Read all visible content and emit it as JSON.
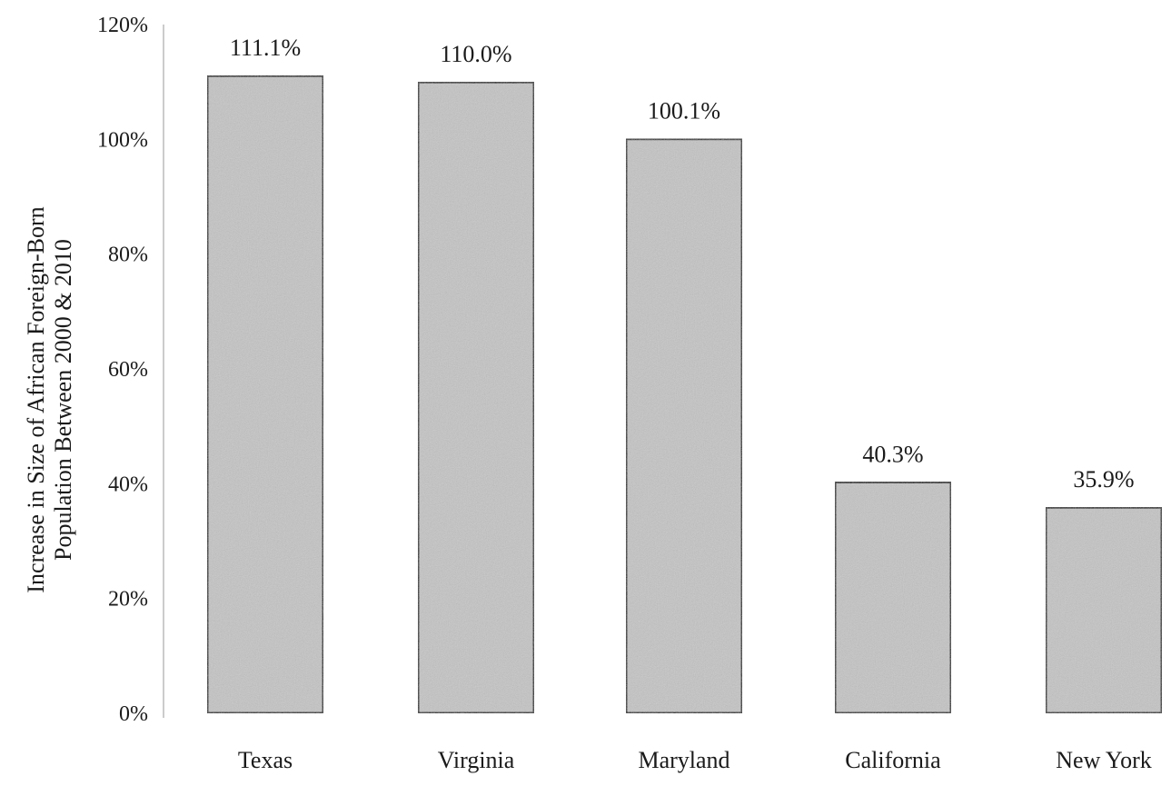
{
  "chart_data": {
    "type": "bar",
    "title": "",
    "xlabel": "",
    "ylabel_lines": [
      "Increase in Size of African Foreign-Born",
      "Population Between 2000 & 2010"
    ],
    "categories": [
      "Texas",
      "Virginia",
      "Maryland",
      "California",
      "New York"
    ],
    "values": [
      111.1,
      110.0,
      100.1,
      40.3,
      35.9
    ],
    "data_labels": [
      "111.1%",
      "110.0%",
      "100.1%",
      "40.3%",
      "35.9%"
    ],
    "ylim": [
      0,
      120
    ],
    "yticks": [
      0,
      20,
      40,
      60,
      80,
      100,
      120
    ],
    "ytick_labels": [
      "0%",
      "20%",
      "40%",
      "60%",
      "80%",
      "100%",
      "120%"
    ],
    "grid": false,
    "legend": "none",
    "colors": {
      "bar_fill": "#c4c4c4",
      "bar_stroke": "#1a1a1a",
      "axis": "#9a9a9a",
      "text": "#1a1a1a"
    }
  }
}
